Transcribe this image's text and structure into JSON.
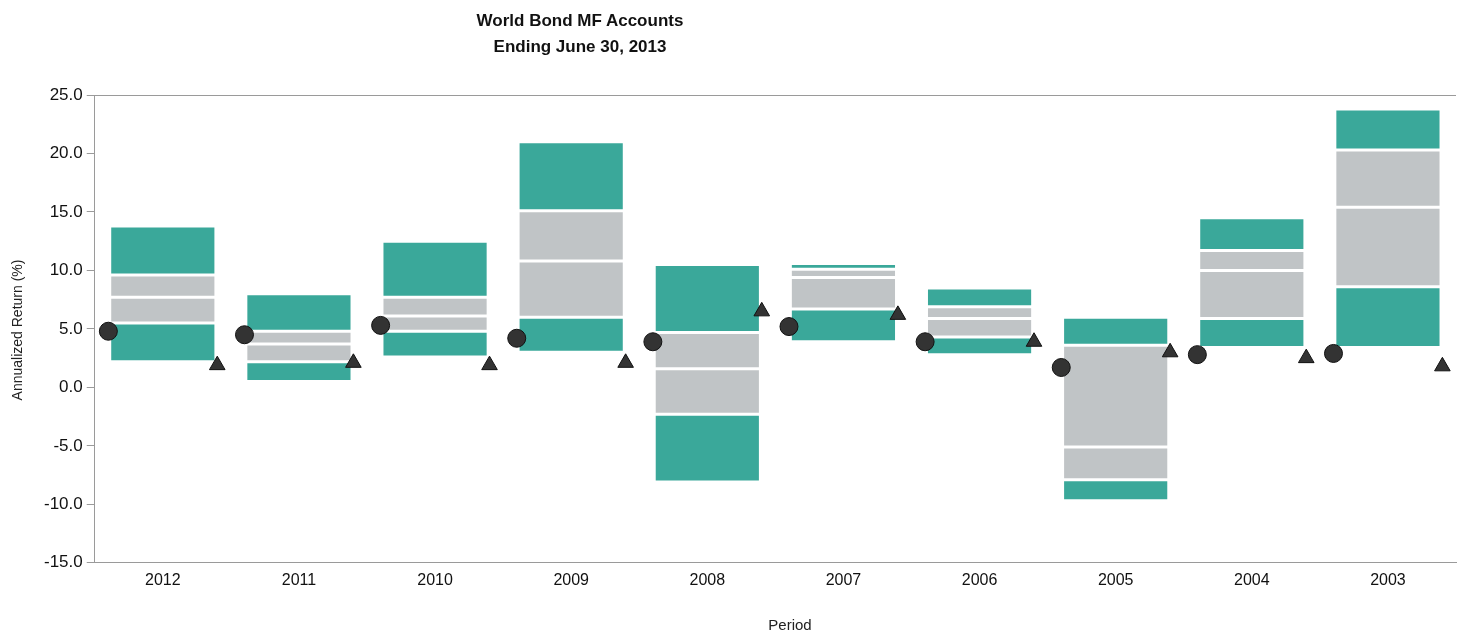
{
  "chart_data": {
    "type": "bar",
    "title": "World Bond MF Accounts",
    "subtitle": "Ending June 30, 2013",
    "xlabel": "Period",
    "ylabel": "Annualized Return (%)",
    "categories": [
      "2012",
      "2011",
      "2010",
      "2009",
      "2008",
      "2007",
      "2006",
      "2005",
      "2004",
      "2003"
    ],
    "series": [
      {
        "color": "#3aa89a",
        "base": [
          2.2,
          0.5,
          2.6,
          3.0,
          -8.1,
          3.9,
          2.8,
          -9.7,
          3.4,
          3.4
        ],
        "values": [
          3.3,
          1.7,
          2.2,
          3.0,
          5.8,
          2.8,
          1.5,
          1.8,
          2.5,
          5.2
        ]
      },
      {
        "color": "#c0c4c6",
        "base": [
          5.5,
          2.2,
          4.8,
          6.0,
          -2.3,
          6.7,
          4.3,
          -7.9,
          5.9,
          8.6
        ],
        "values": [
          2.2,
          1.5,
          1.3,
          4.8,
          3.9,
          2.7,
          1.6,
          2.8,
          4.1,
          6.8
        ]
      },
      {
        "color": "#c0c4c6",
        "base": [
          7.7,
          3.7,
          6.1,
          10.8,
          1.6,
          9.4,
          5.9,
          -5.1,
          10.0,
          15.4
        ],
        "values": [
          1.9,
          1.1,
          1.6,
          4.3,
          3.1,
          0.7,
          1.0,
          8.7,
          1.7,
          4.9
        ]
      },
      {
        "color": "#3aa89a",
        "base": [
          9.6,
          4.8,
          7.7,
          15.1,
          4.7,
          10.1,
          6.9,
          3.6,
          11.7,
          20.3
        ],
        "values": [
          4.2,
          3.2,
          4.8,
          5.9,
          5.8,
          0.5,
          1.6,
          2.4,
          2.8,
          3.5
        ]
      },
      {
        "type": "scatter",
        "marker": "circle",
        "color": "#333333",
        "values": [
          4.8,
          4.5,
          5.3,
          4.2,
          3.9,
          5.2,
          3.9,
          1.7,
          2.8,
          2.9
        ]
      },
      {
        "type": "scatter",
        "marker": "triangle",
        "color": "#333333",
        "values": [
          1.9,
          2.1,
          1.9,
          2.1,
          6.5,
          6.2,
          3.9,
          3.0,
          2.5,
          1.8
        ]
      }
    ],
    "ylim": [
      -15,
      25
    ],
    "yticks": [
      {
        "value": -15,
        "label": "-15.0"
      },
      {
        "value": -10,
        "label": "-10.0"
      },
      {
        "value": -5,
        "label": "-5.0"
      },
      {
        "value": 0,
        "label": "0.0"
      },
      {
        "value": 5,
        "label": "5.0"
      },
      {
        "value": 10,
        "label": "10.0"
      },
      {
        "value": 15,
        "label": "15.0"
      },
      {
        "value": 20,
        "label": "20.0"
      },
      {
        "value": 25,
        "label": "25.0"
      }
    ]
  }
}
